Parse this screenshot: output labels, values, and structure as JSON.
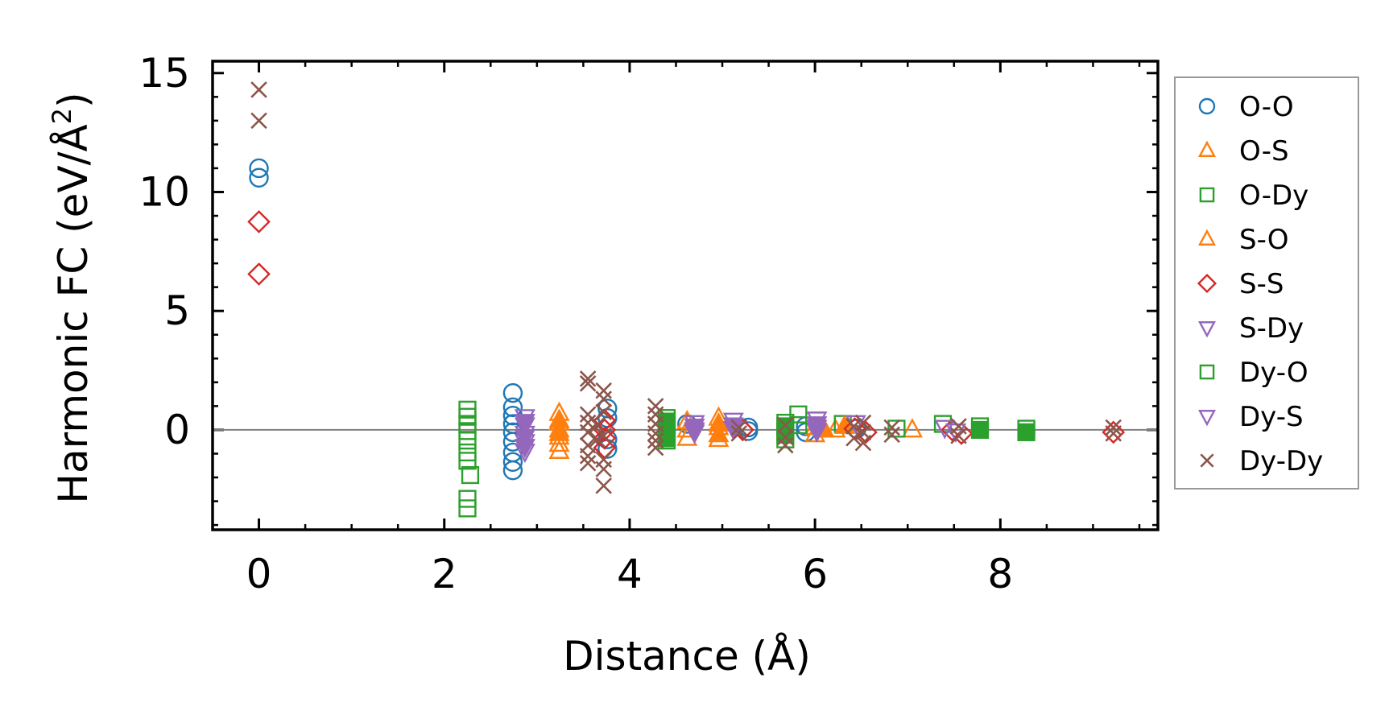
{
  "chart_data": {
    "type": "scatter",
    "title": "",
    "xlabel": "Distance (Å)",
    "ylabel_main": "Harmonic FC (eV/Å",
    "ylabel_sup": "2",
    "ylabel_close": ")",
    "xlim": [
      -0.5,
      9.7
    ],
    "ylim": [
      -4.2,
      15.5
    ],
    "xticks": [
      0,
      2,
      4,
      6,
      8
    ],
    "xtick_labels": [
      "0",
      "2",
      "4",
      "6",
      "8"
    ],
    "yticks": [
      0,
      5,
      10,
      15
    ],
    "ytick_labels": [
      "0",
      "5",
      "10",
      "15"
    ],
    "reference_line_y": 0,
    "legend_position": "outside-right",
    "series": [
      {
        "name": "O-O",
        "marker": "circle",
        "filled": false,
        "color": "#1f77b4",
        "points": [
          [
            0,
            11.0
          ],
          [
            0,
            10.6
          ],
          [
            2.74,
            1.55
          ],
          [
            2.74,
            0.95
          ],
          [
            2.74,
            0.6
          ],
          [
            2.74,
            0.25
          ],
          [
            2.74,
            -0.1
          ],
          [
            2.74,
            -0.5
          ],
          [
            2.74,
            -0.95
          ],
          [
            2.74,
            -1.35
          ],
          [
            2.74,
            -1.7
          ],
          [
            3.76,
            0.9
          ],
          [
            3.76,
            0.5
          ],
          [
            3.76,
            -0.4
          ],
          [
            3.76,
            -0.8
          ],
          [
            4.62,
            0.25
          ],
          [
            5.28,
            0.1
          ],
          [
            5.28,
            -0.05
          ],
          [
            5.9,
            0.15
          ],
          [
            5.9,
            -0.1
          ],
          [
            6.45,
            0.05
          ]
        ]
      },
      {
        "name": "O-S",
        "marker": "triangle-up",
        "filled": false,
        "color": "#ff7f0e",
        "points": [
          [
            3.24,
            0.7
          ],
          [
            3.24,
            0.3
          ],
          [
            3.24,
            0.0
          ],
          [
            3.24,
            -0.3
          ],
          [
            3.24,
            -0.6
          ],
          [
            3.24,
            -0.9
          ],
          [
            4.62,
            0.35
          ],
          [
            4.62,
            0.0
          ],
          [
            4.62,
            -0.35
          ],
          [
            4.96,
            0.5
          ],
          [
            4.96,
            0.1
          ],
          [
            4.96,
            -0.4
          ],
          [
            6.0,
            0.1
          ],
          [
            6.0,
            -0.2
          ],
          [
            6.22,
            0.0
          ],
          [
            7.05,
            0.0
          ]
        ]
      },
      {
        "name": "O-Dy",
        "marker": "square",
        "filled": false,
        "color": "#2ca02c",
        "points": [
          [
            2.25,
            0.85
          ],
          [
            2.25,
            0.55
          ],
          [
            2.25,
            0.25
          ],
          [
            2.25,
            -0.05
          ],
          [
            2.25,
            -0.45
          ],
          [
            2.25,
            -0.95
          ],
          [
            2.25,
            -1.3
          ],
          [
            2.25,
            -2.9
          ],
          [
            2.25,
            -3.3
          ],
          [
            2.28,
            -1.9
          ],
          [
            4.4,
            0.5
          ],
          [
            4.4,
            0.2
          ],
          [
            4.4,
            -0.2
          ],
          [
            4.4,
            -0.45
          ],
          [
            5.68,
            0.3
          ],
          [
            5.68,
            -0.1
          ],
          [
            5.68,
            -0.4
          ],
          [
            5.82,
            0.65
          ],
          [
            5.82,
            0.2
          ],
          [
            6.3,
            0.25
          ],
          [
            6.88,
            0.05
          ],
          [
            7.38,
            0.25
          ],
          [
            7.78,
            0.15
          ],
          [
            8.28,
            0.05
          ]
        ]
      },
      {
        "name": "S-O",
        "marker": "triangle-up",
        "filled": true,
        "color": "#ff7f0e",
        "points": [
          [
            3.24,
            0.4
          ],
          [
            3.24,
            -0.15
          ],
          [
            4.96,
            0.25
          ],
          [
            4.96,
            -0.2
          ],
          [
            6.1,
            0.0
          ],
          [
            6.32,
            0.15
          ]
        ]
      },
      {
        "name": "S-S",
        "marker": "diamond",
        "filled": false,
        "color": "#d62728",
        "points": [
          [
            0,
            8.75
          ],
          [
            0,
            6.55
          ],
          [
            3.73,
            0.4
          ],
          [
            3.73,
            0.0
          ],
          [
            3.73,
            -0.35
          ],
          [
            3.73,
            -0.75
          ],
          [
            5.22,
            0.0
          ],
          [
            6.43,
            0.05
          ],
          [
            6.55,
            -0.1
          ],
          [
            7.48,
            0.0
          ],
          [
            7.58,
            -0.15
          ],
          [
            9.22,
            -0.1
          ]
        ]
      },
      {
        "name": "S-Dy",
        "marker": "triangle-down",
        "filled": false,
        "color": "#9467bd",
        "points": [
          [
            2.87,
            0.55
          ],
          [
            2.87,
            0.2
          ],
          [
            2.87,
            -0.15
          ],
          [
            2.87,
            -0.5
          ],
          [
            2.87,
            -0.9
          ],
          [
            4.7,
            0.3
          ],
          [
            4.7,
            0.0
          ],
          [
            5.12,
            0.4
          ],
          [
            5.12,
            0.05
          ],
          [
            6.02,
            0.45
          ],
          [
            6.02,
            0.1
          ],
          [
            6.44,
            0.3
          ],
          [
            7.4,
            0.1
          ],
          [
            7.52,
            -0.05
          ]
        ]
      },
      {
        "name": "Dy-O",
        "marker": "square",
        "filled": true,
        "color": "#2ca02c",
        "points": [
          [
            4.4,
            0.35
          ],
          [
            4.4,
            0.0
          ],
          [
            4.4,
            -0.35
          ],
          [
            5.68,
            0.15
          ],
          [
            5.68,
            -0.2
          ],
          [
            7.78,
            0.0
          ],
          [
            8.28,
            -0.1
          ]
        ]
      },
      {
        "name": "Dy-S",
        "marker": "triangle-down",
        "filled": true,
        "color": "#9467bd",
        "points": [
          [
            2.87,
            0.35
          ],
          [
            2.87,
            -0.3
          ],
          [
            2.87,
            -0.7
          ],
          [
            4.7,
            0.15
          ],
          [
            4.7,
            -0.1
          ],
          [
            5.12,
            0.2
          ],
          [
            6.02,
            0.25
          ],
          [
            6.02,
            -0.05
          ]
        ]
      },
      {
        "name": "Dy-Dy",
        "marker": "x",
        "filled": false,
        "color": "#8c564b",
        "points": [
          [
            0,
            14.3
          ],
          [
            0,
            13.0
          ],
          [
            3.55,
            2.15
          ],
          [
            3.55,
            1.95
          ],
          [
            3.55,
            0.65
          ],
          [
            3.55,
            0.3
          ],
          [
            3.55,
            -0.1
          ],
          [
            3.55,
            -0.65
          ],
          [
            3.55,
            -1.1
          ],
          [
            3.55,
            -1.4
          ],
          [
            3.72,
            1.65
          ],
          [
            3.72,
            1.3
          ],
          [
            3.72,
            0.75
          ],
          [
            3.72,
            -0.25
          ],
          [
            3.72,
            -1.25
          ],
          [
            3.72,
            -1.65
          ],
          [
            3.72,
            -2.35
          ],
          [
            3.65,
            0.2
          ],
          [
            3.65,
            -0.4
          ],
          [
            4.28,
            1.0
          ],
          [
            4.28,
            0.65
          ],
          [
            4.28,
            0.25
          ],
          [
            4.28,
            -0.15
          ],
          [
            4.28,
            -0.45
          ],
          [
            4.28,
            -0.75
          ],
          [
            5.18,
            0.1
          ],
          [
            5.18,
            -0.15
          ],
          [
            5.68,
            0.2
          ],
          [
            5.68,
            -0.3
          ],
          [
            5.68,
            -0.65
          ],
          [
            6.42,
            0.15
          ],
          [
            6.42,
            -0.35
          ],
          [
            6.52,
            0.3
          ],
          [
            6.52,
            -0.1
          ],
          [
            6.52,
            -0.55
          ],
          [
            6.83,
            0.1
          ],
          [
            6.83,
            -0.2
          ],
          [
            7.55,
            0.15
          ],
          [
            7.55,
            -0.25
          ],
          [
            9.22,
            -0.15
          ],
          [
            9.22,
            0.1
          ]
        ]
      }
    ]
  }
}
